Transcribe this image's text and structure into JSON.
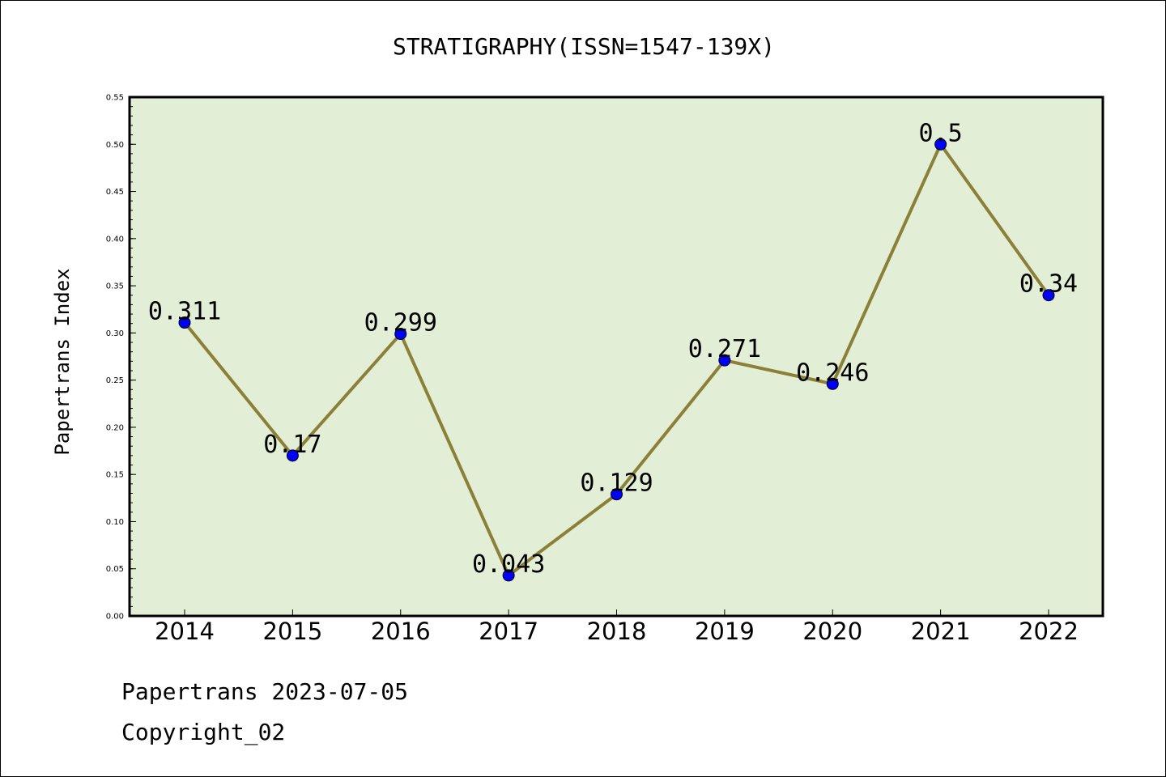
{
  "chart_data": {
    "type": "line",
    "title": "STRATIGRAPHY(ISSN=1547-139X)",
    "xlabel": "",
    "ylabel": "Papertrans Index",
    "categories": [
      "2014",
      "2015",
      "2016",
      "2017",
      "2018",
      "2019",
      "2020",
      "2021",
      "2022"
    ],
    "values": [
      0.311,
      0.17,
      0.299,
      0.043,
      0.129,
      0.271,
      0.246,
      0.5,
      0.34
    ],
    "data_labels": [
      "0.311",
      "0.17",
      "0.299",
      "0.043",
      "0.129",
      "0.271",
      "0.246",
      "0.5",
      "0.34"
    ],
    "ylim": [
      0,
      0.55
    ],
    "yticks": [
      "0.00",
      "0.05",
      "0.10",
      "0.15",
      "0.20",
      "0.25",
      "0.30",
      "0.35",
      "0.40",
      "0.45",
      "0.50",
      "0.55"
    ],
    "grid": false,
    "colors": {
      "plot_background": "#e2efd6",
      "line": "#8b8038",
      "marker": "#0000ff"
    }
  },
  "footer": {
    "date_line": "Papertrans 2023-07-05",
    "copyright": "Copyright_02"
  }
}
